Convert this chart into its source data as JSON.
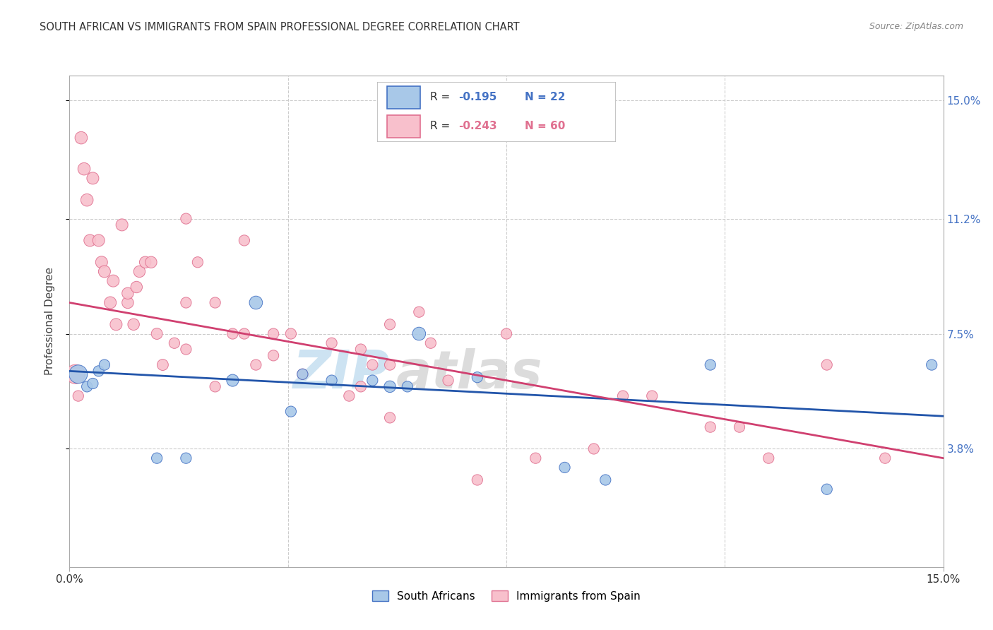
{
  "title": "SOUTH AFRICAN VS IMMIGRANTS FROM SPAIN PROFESSIONAL DEGREE CORRELATION CHART",
  "source": "Source: ZipAtlas.com",
  "ylabel": "Professional Degree",
  "ytick_values": [
    3.8,
    7.5,
    11.2,
    15.0
  ],
  "xmin": 0.0,
  "xmax": 15.0,
  "ymin": 0.0,
  "ymax": 15.8,
  "legend_bottom_blue": "South Africans",
  "legend_bottom_pink": "Immigrants from Spain",
  "blue_color": "#a8c8e8",
  "pink_color": "#f8c0cc",
  "blue_edge_color": "#4472c4",
  "pink_edge_color": "#e07090",
  "blue_line_color": "#2255aa",
  "pink_line_color": "#d04070",
  "watermark_zip": "ZIP",
  "watermark_atlas": "atlas",
  "blue_R": "-0.195",
  "blue_N": "22",
  "pink_R": "-0.243",
  "pink_N": "60",
  "blue_line_y_start": 6.3,
  "blue_line_y_end": 4.85,
  "pink_line_y_start": 8.5,
  "pink_line_y_end": 3.5,
  "blue_scatter_x": [
    0.15,
    0.3,
    0.4,
    0.5,
    0.6,
    1.5,
    2.0,
    2.8,
    3.2,
    4.0,
    4.5,
    5.2,
    5.5,
    6.0,
    7.0,
    8.5,
    9.2,
    11.0,
    13.0,
    14.8,
    3.8,
    5.8
  ],
  "blue_scatter_y": [
    6.2,
    5.8,
    5.9,
    6.3,
    6.5,
    3.5,
    3.5,
    6.0,
    8.5,
    6.2,
    6.0,
    6.0,
    5.8,
    7.5,
    6.1,
    3.2,
    2.8,
    6.5,
    2.5,
    6.5,
    5.0,
    5.8
  ],
  "blue_scatter_sizes": [
    350,
    120,
    120,
    120,
    120,
    120,
    120,
    150,
    180,
    120,
    120,
    120,
    140,
    180,
    120,
    120,
    120,
    120,
    120,
    120,
    120,
    120
  ],
  "pink_scatter_x": [
    0.1,
    0.2,
    0.25,
    0.3,
    0.35,
    0.4,
    0.5,
    0.55,
    0.6,
    0.7,
    0.75,
    0.8,
    0.9,
    1.0,
    1.0,
    1.1,
    1.15,
    1.2,
    1.3,
    1.4,
    1.5,
    1.6,
    1.8,
    2.0,
    2.0,
    2.2,
    2.5,
    2.5,
    2.8,
    3.0,
    3.0,
    3.2,
    3.5,
    3.5,
    4.0,
    4.5,
    5.0,
    5.0,
    5.5,
    5.5,
    6.0,
    6.5,
    7.0,
    8.0,
    9.0,
    10.0,
    11.0,
    12.0,
    13.0,
    14.0,
    2.0,
    3.8,
    4.8,
    5.2,
    5.5,
    6.2,
    7.5,
    9.5,
    11.5,
    0.15
  ],
  "pink_scatter_y": [
    6.2,
    13.8,
    12.8,
    11.8,
    10.5,
    12.5,
    10.5,
    9.8,
    9.5,
    8.5,
    9.2,
    7.8,
    11.0,
    8.5,
    8.8,
    7.8,
    9.0,
    9.5,
    9.8,
    9.8,
    7.5,
    6.5,
    7.2,
    7.0,
    11.2,
    9.8,
    8.5,
    5.8,
    7.5,
    7.5,
    10.5,
    6.5,
    6.8,
    7.5,
    6.2,
    7.2,
    7.0,
    5.8,
    4.8,
    7.8,
    8.2,
    6.0,
    2.8,
    3.5,
    3.8,
    5.5,
    4.5,
    3.5,
    6.5,
    3.5,
    8.5,
    7.5,
    5.5,
    6.5,
    6.5,
    7.2,
    7.5,
    5.5,
    4.5,
    5.5
  ],
  "pink_scatter_sizes": [
    380,
    160,
    160,
    160,
    150,
    150,
    150,
    150,
    150,
    150,
    150,
    150,
    150,
    140,
    140,
    140,
    140,
    140,
    140,
    140,
    130,
    130,
    120,
    120,
    120,
    120,
    120,
    120,
    120,
    120,
    120,
    120,
    120,
    120,
    120,
    120,
    120,
    120,
    120,
    120,
    120,
    120,
    120,
    120,
    120,
    120,
    120,
    120,
    120,
    120,
    120,
    120,
    120,
    120,
    120,
    120,
    120,
    120,
    120,
    120
  ]
}
